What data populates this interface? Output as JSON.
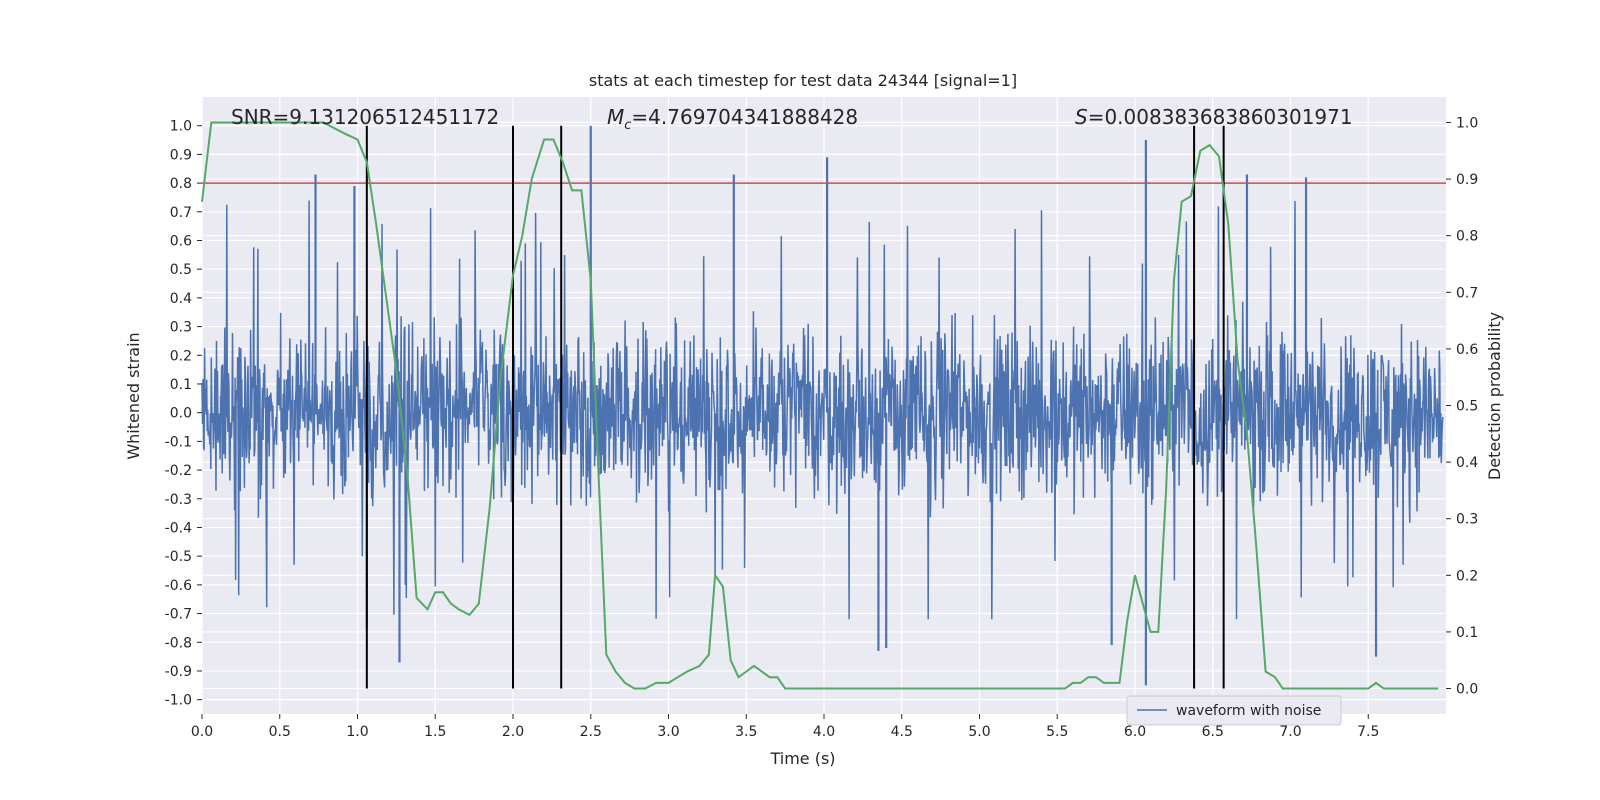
{
  "chart_data": {
    "type": "line",
    "title": "stats at each timestep for test data 24344 [signal=1]",
    "xlabel": "Time (s)",
    "ylabel": "Whitened strain",
    "y2label": "Detection probability",
    "xlim": [
      0.0,
      8.0
    ],
    "ylim": [
      -1.05,
      1.1
    ],
    "y2lim": [
      -0.045,
      1.045
    ],
    "xticks": [
      "0.0",
      "0.5",
      "1.0",
      "1.5",
      "2.0",
      "2.5",
      "3.0",
      "3.5",
      "4.0",
      "4.5",
      "5.0",
      "5.5",
      "6.0",
      "6.5",
      "7.0",
      "7.5"
    ],
    "yticks": [
      "1.0",
      "0.9",
      "0.8",
      "0.7",
      "0.6",
      "0.5",
      "0.4",
      "0.3",
      "0.2",
      "0.1",
      "0.0",
      "-0.1",
      "-0.2",
      "-0.3",
      "-0.4",
      "-0.5",
      "-0.6",
      "-0.7",
      "-0.8",
      "-0.9",
      "-1.0"
    ],
    "y2ticks": [
      "1.0",
      "0.9",
      "0.8",
      "0.7",
      "0.6",
      "0.5",
      "0.4",
      "0.3",
      "0.2",
      "0.1",
      "0.0"
    ],
    "grid": true,
    "legend": {
      "position": "lower-right",
      "entries": [
        "waveform with noise"
      ]
    },
    "annotations": {
      "snr": "SNR=9.131206512451172",
      "mc_symbol": "M",
      "mc_sub": "c",
      "mc_value": "=4.769704341888428",
      "s_symbol": "S",
      "s_value": "=0.008383683860301971"
    },
    "threshold_y": 0.8,
    "vertical_lines_x": [
      1.06,
      2.0,
      2.31,
      6.38,
      6.57
    ],
    "waveform": {
      "name": "waveform with noise",
      "typical_amplitude": 0.4,
      "peaks": [
        {
          "x": 0.73,
          "y": 0.83
        },
        {
          "x": 0.98,
          "y": 0.79
        },
        {
          "x": 2.5,
          "y": 1.0
        },
        {
          "x": 3.42,
          "y": 0.83
        },
        {
          "x": 4.02,
          "y": 0.89
        },
        {
          "x": 6.07,
          "y": 0.95
        },
        {
          "x": 6.72,
          "y": 0.83
        },
        {
          "x": 7.1,
          "y": 0.82
        },
        {
          "x": 1.06,
          "y": -0.75
        },
        {
          "x": 1.27,
          "y": -0.87
        },
        {
          "x": 4.35,
          "y": -0.83
        },
        {
          "x": 4.4,
          "y": -0.82
        },
        {
          "x": 5.85,
          "y": -0.81
        },
        {
          "x": 6.07,
          "y": -0.95
        },
        {
          "x": 7.55,
          "y": -0.85
        }
      ]
    },
    "probability": {
      "x": [
        0.0,
        0.06,
        0.1,
        0.15,
        0.2,
        0.3,
        0.4,
        0.5,
        0.6,
        0.7,
        0.78,
        0.85,
        0.92,
        1.0,
        1.06,
        1.12,
        1.18,
        1.25,
        1.32,
        1.38,
        1.45,
        1.5,
        1.55,
        1.6,
        1.65,
        1.72,
        1.78,
        1.85,
        1.92,
        2.0,
        2.06,
        2.12,
        2.2,
        2.26,
        2.32,
        2.38,
        2.44,
        2.5,
        2.55,
        2.6,
        2.66,
        2.72,
        2.78,
        2.85,
        2.92,
        3.0,
        3.06,
        3.12,
        3.2,
        3.26,
        3.3,
        3.35,
        3.4,
        3.45,
        3.5,
        3.55,
        3.6,
        3.65,
        3.7,
        3.75,
        3.8,
        4.0,
        4.2,
        4.4,
        4.6,
        4.8,
        5.0,
        5.2,
        5.3,
        5.4,
        5.5,
        5.55,
        5.6,
        5.65,
        5.7,
        5.75,
        5.8,
        5.85,
        5.9,
        5.95,
        6.0,
        6.05,
        6.1,
        6.15,
        6.2,
        6.25,
        6.3,
        6.36,
        6.42,
        6.48,
        6.54,
        6.6,
        6.66,
        6.72,
        6.78,
        6.84,
        6.9,
        6.95,
        7.0,
        7.1,
        7.2,
        7.3,
        7.4,
        7.5,
        7.55,
        7.6,
        7.7,
        7.8,
        7.9,
        7.95
      ],
      "y": [
        0.86,
        1.0,
        1.0,
        1.0,
        1.0,
        1.0,
        1.0,
        1.0,
        1.0,
        1.0,
        1.0,
        0.99,
        0.98,
        0.97,
        0.93,
        0.82,
        0.7,
        0.56,
        0.38,
        0.16,
        0.14,
        0.17,
        0.17,
        0.15,
        0.14,
        0.13,
        0.15,
        0.32,
        0.55,
        0.73,
        0.8,
        0.9,
        0.97,
        0.97,
        0.93,
        0.88,
        0.88,
        0.72,
        0.38,
        0.06,
        0.03,
        0.01,
        0.0,
        0.0,
        0.01,
        0.01,
        0.02,
        0.03,
        0.04,
        0.06,
        0.2,
        0.18,
        0.05,
        0.02,
        0.03,
        0.04,
        0.03,
        0.02,
        0.02,
        0.0,
        0.0,
        0.0,
        0.0,
        0.0,
        0.0,
        0.0,
        0.0,
        0.0,
        0.0,
        0.0,
        0.0,
        0.0,
        0.01,
        0.01,
        0.02,
        0.02,
        0.01,
        0.01,
        0.01,
        0.12,
        0.2,
        0.15,
        0.1,
        0.1,
        0.35,
        0.72,
        0.86,
        0.87,
        0.95,
        0.96,
        0.94,
        0.82,
        0.58,
        0.45,
        0.25,
        0.03,
        0.02,
        0.0,
        0.0,
        0.0,
        0.0,
        0.0,
        0.0,
        0.0,
        0.01,
        0.0,
        0.0,
        0.0,
        0.0,
        0.0
      ]
    },
    "colors": {
      "background": "#eaeaf2",
      "grid": "#ffffff",
      "waveform": "#4c72b0",
      "probability": "#55a868",
      "threshold": "#c44e52",
      "markers": "#000000",
      "text": "#262626"
    }
  }
}
